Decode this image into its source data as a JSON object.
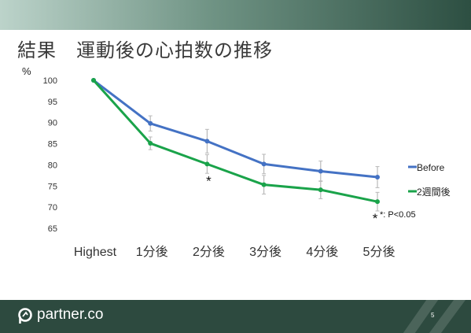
{
  "slide": {
    "title": "結果　運動後の心拍数の推移",
    "page_number": "5",
    "brand": "partner.co"
  },
  "chart_data": {
    "type": "line",
    "ylabel": "%",
    "ylim": [
      65,
      100
    ],
    "yticks": [
      100,
      95,
      90,
      85,
      80,
      75,
      70,
      65
    ],
    "categories": [
      "Highest",
      "1分後",
      "2分後",
      "3分後",
      "4分後",
      "5分後"
    ],
    "series": [
      {
        "name": "Before",
        "color": "#4472c4",
        "values": [
          100,
          89.8,
          85.6,
          80.2,
          78.5,
          77.1
        ],
        "errors": [
          0,
          1.8,
          2.8,
          2.3,
          2.4,
          2.5
        ]
      },
      {
        "name": "2週間後",
        "color": "#1aa34a",
        "values": [
          100,
          85.1,
          80.2,
          75.3,
          74.1,
          71.3
        ],
        "errors": [
          0,
          1.5,
          2.2,
          2.2,
          2.1,
          2.2
        ]
      }
    ],
    "annotations": [
      {
        "text": "*",
        "category": "2分後"
      },
      {
        "text": "*",
        "category": "5分後"
      }
    ],
    "significance_note": "*: P<0.05",
    "legend_position": "right",
    "grid": false
  }
}
